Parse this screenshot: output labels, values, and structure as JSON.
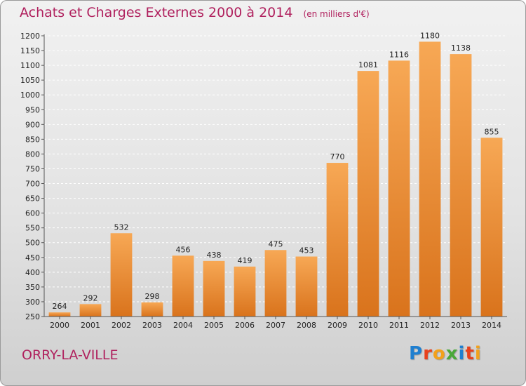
{
  "header": {
    "title": "Achats et Charges Externes 2000 à 2014",
    "subtitle": "(en milliers d'€)"
  },
  "footer": {
    "commune": "ORRY-LA-VILLE",
    "logo_text": "Proxiti",
    "logo_colors": [
      "#1f7fd0",
      "#e8401c",
      "#f2a11b",
      "#4aa838",
      "#1f7fd0",
      "#e8401c",
      "#f2a11b"
    ]
  },
  "colors": {
    "bar_light": "#f7a855",
    "bar_dark": "#d9731c",
    "grid": "#ffffff",
    "accent": "#b0215e"
  },
  "chart_data": {
    "type": "bar",
    "categories": [
      "2000",
      "2001",
      "2002",
      "2003",
      "2004",
      "2005",
      "2006",
      "2007",
      "2008",
      "2009",
      "2010",
      "2011",
      "2012",
      "2013",
      "2014"
    ],
    "values": [
      264,
      292,
      532,
      298,
      456,
      438,
      419,
      475,
      453,
      770,
      1081,
      1116,
      1180,
      1138,
      855
    ],
    "ylim": [
      250,
      1200
    ],
    "yticks": [
      250,
      300,
      350,
      400,
      450,
      500,
      550,
      600,
      650,
      700,
      750,
      800,
      850,
      900,
      950,
      1000,
      1050,
      1100,
      1150,
      1200
    ],
    "grid": true,
    "legend": "none"
  }
}
